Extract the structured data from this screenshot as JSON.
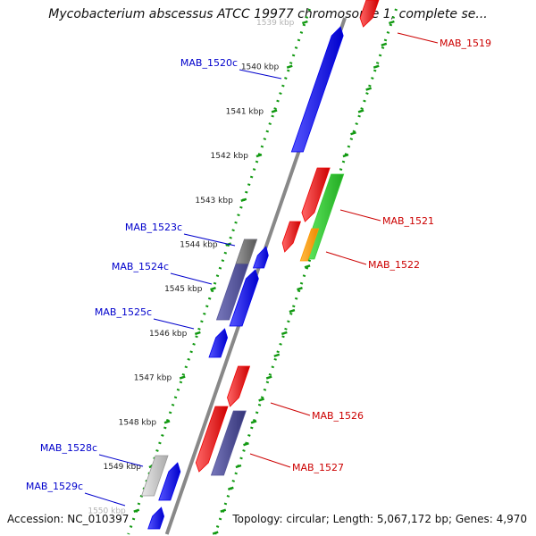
{
  "title": "Mycobacterium abscessus ATCC 19977 chromosome 1, complete se...",
  "footer": {
    "accession": "Accession: NC_010397",
    "summary": "Topology: circular; Length: 5,067,172 bp; Genes: 4,970"
  },
  "ticks": [
    {
      "label": "1539 kbp",
      "faded": true
    },
    {
      "label": "1540 kbp"
    },
    {
      "label": "1541 kbp"
    },
    {
      "label": "1542 kbp"
    },
    {
      "label": "1543 kbp"
    },
    {
      "label": "1544 kbp"
    },
    {
      "label": "1545 kbp"
    },
    {
      "label": "1546 kbp"
    },
    {
      "label": "1547 kbp"
    },
    {
      "label": "1548 kbp"
    },
    {
      "label": "1549 kbp"
    },
    {
      "label": "1550 kbp",
      "faded": true
    }
  ],
  "labels": {
    "left": [
      {
        "text": "MAB_1520c",
        "color": "#0000cc"
      },
      {
        "text": "MAB_1523c",
        "color": "#0000cc"
      },
      {
        "text": "MAB_1524c",
        "color": "#0000cc"
      },
      {
        "text": "MAB_1525c",
        "color": "#0000cc"
      },
      {
        "text": "MAB_1528c",
        "color": "#0000cc"
      },
      {
        "text": "MAB_1529c",
        "color": "#0000cc"
      }
    ],
    "right": [
      {
        "text": "MAB_1519",
        "color": "#cc0000"
      },
      {
        "text": "MAB_1521",
        "color": "#cc0000"
      },
      {
        "text": "MAB_1522",
        "color": "#cc0000"
      },
      {
        "text": "MAB_1526",
        "color": "#cc0000"
      },
      {
        "text": "MAB_1527",
        "color": "#cc0000"
      }
    ]
  },
  "colors": {
    "forward_cds": "#ee0000",
    "reverse_cds": "#0000ee",
    "rna": "#33cc33",
    "orange": "#ff9900",
    "pseudo": "#555599",
    "gray": "#777777",
    "backbone": "#888888",
    "tick_dots": "#119911"
  }
}
